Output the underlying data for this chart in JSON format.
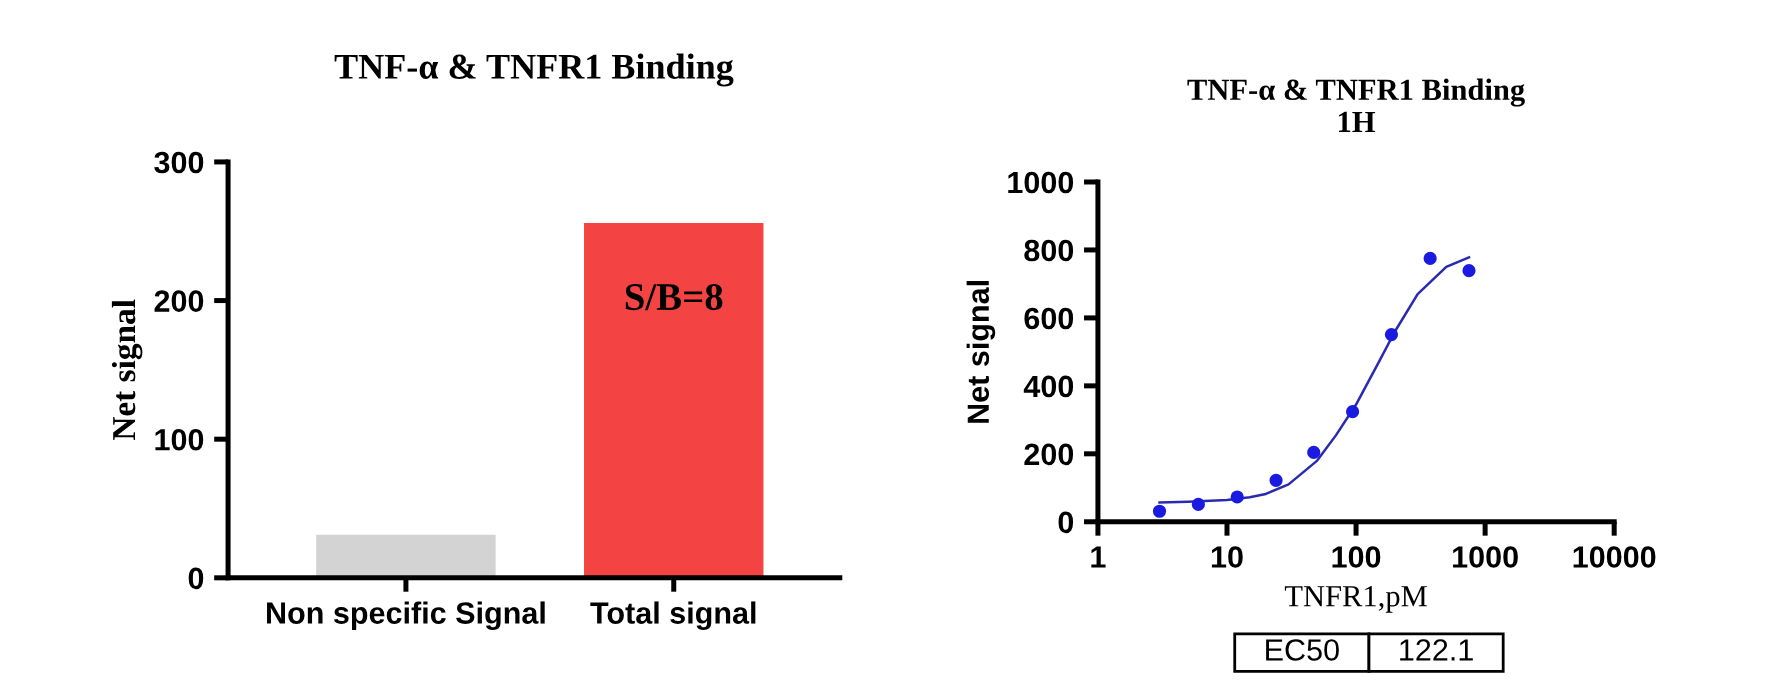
{
  "chart_data": [
    {
      "type": "bar",
      "title": "TNF-α & TNFR1 Binding",
      "ylabel": "Net signal",
      "categories": [
        "Non specific Signal",
        "Total signal"
      ],
      "values": [
        31,
        256
      ],
      "colors": [
        "#d3d3d3",
        "#f44343"
      ],
      "ylim": [
        0,
        300
      ],
      "yticks": [
        0,
        100,
        200,
        300
      ],
      "annotations": [
        "S/B=8"
      ]
    },
    {
      "type": "scatter",
      "title": "TNF-α & TNFR1 Binding\n1H",
      "xlabel": "TNFR1,pM",
      "ylabel": "Net signal",
      "log": "x",
      "xlim": [
        1,
        10000
      ],
      "xticks": [
        1,
        10,
        100,
        1000,
        10000
      ],
      "ylim": [
        0,
        1000
      ],
      "yticks": [
        0,
        200,
        400,
        600,
        800,
        1000
      ],
      "series": [
        {
          "type": "scatter",
          "marker": "circle",
          "color": "#1a1ae0",
          "x": [
            3,
            6,
            12,
            24,
            47,
            94,
            188,
            375,
            750
          ],
          "values": [
            31,
            51,
            73,
            122,
            204,
            324,
            551,
            775,
            739
          ]
        },
        {
          "type": "line",
          "marker": "none",
          "color": "#2a2ab0",
          "x": [
            3,
            5,
            10,
            15,
            20,
            30,
            50,
            70,
            100,
            150,
            200,
            300,
            500,
            750
          ],
          "values": [
            57,
            59,
            64,
            72,
            82,
            110,
            180,
            255,
            345,
            470,
            560,
            670,
            750,
            778
          ]
        }
      ],
      "annotations": [
        "EC50",
        "122.1"
      ]
    }
  ]
}
